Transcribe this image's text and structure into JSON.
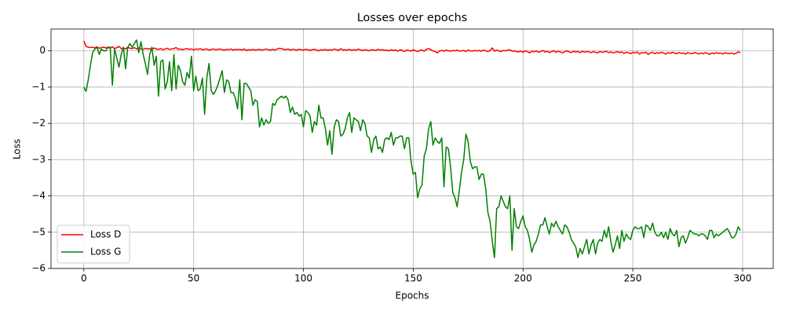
{
  "chart_data": {
    "type": "line",
    "title": "Losses over epochs",
    "x_label": "Epochs",
    "y_label": "Loss",
    "xlim": [
      -14.95,
      313.95
    ],
    "ylim": [
      -6.0,
      0.6
    ],
    "xticks": [
      0,
      50,
      100,
      150,
      200,
      250,
      300
    ],
    "yticks": [
      {
        "value": -6,
        "label": "−6"
      },
      {
        "value": -5,
        "label": "−5"
      },
      {
        "value": -4,
        "label": "−4"
      },
      {
        "value": -3,
        "label": "−3"
      },
      {
        "value": -2,
        "label": "−2"
      },
      {
        "value": -1,
        "label": "−1"
      },
      0
    ],
    "grid": true,
    "legend": "lower left",
    "x": [
      0,
      1,
      2,
      3,
      4,
      5,
      6,
      7,
      8,
      9,
      10,
      11,
      12,
      13,
      14,
      15,
      16,
      17,
      18,
      19,
      20,
      21,
      22,
      23,
      24,
      25,
      26,
      27,
      28,
      29,
      30,
      31,
      32,
      33,
      34,
      35,
      36,
      37,
      38,
      39,
      40,
      41,
      42,
      43,
      44,
      45,
      46,
      47,
      48,
      49,
      50,
      51,
      52,
      53,
      54,
      55,
      56,
      57,
      58,
      59,
      60,
      61,
      62,
      63,
      64,
      65,
      66,
      67,
      68,
      69,
      70,
      71,
      72,
      73,
      74,
      75,
      76,
      77,
      78,
      79,
      80,
      81,
      82,
      83,
      84,
      85,
      86,
      87,
      88,
      89,
      90,
      91,
      92,
      93,
      94,
      95,
      96,
      97,
      98,
      99,
      100,
      101,
      102,
      103,
      104,
      105,
      106,
      107,
      108,
      109,
      110,
      111,
      112,
      113,
      114,
      115,
      116,
      117,
      118,
      119,
      120,
      121,
      122,
      123,
      124,
      125,
      126,
      127,
      128,
      129,
      130,
      131,
      132,
      133,
      134,
      135,
      136,
      137,
      138,
      139,
      140,
      141,
      142,
      143,
      144,
      145,
      146,
      147,
      148,
      149,
      150,
      151,
      152,
      153,
      154,
      155,
      156,
      157,
      158,
      159,
      160,
      161,
      162,
      163,
      164,
      165,
      166,
      167,
      168,
      169,
      170,
      171,
      172,
      173,
      174,
      175,
      176,
      177,
      178,
      179,
      180,
      181,
      182,
      183,
      184,
      185,
      186,
      187,
      188,
      189,
      190,
      191,
      192,
      193,
      194,
      195,
      196,
      197,
      198,
      199,
      200,
      201,
      202,
      203,
      204,
      205,
      206,
      207,
      208,
      209,
      210,
      211,
      212,
      213,
      214,
      215,
      216,
      217,
      218,
      219,
      220,
      221,
      222,
      223,
      224,
      225,
      226,
      227,
      228,
      229,
      230,
      231,
      232,
      233,
      234,
      235,
      236,
      237,
      238,
      239,
      240,
      241,
      242,
      243,
      244,
      245,
      246,
      247,
      248,
      249,
      250,
      251,
      252,
      253,
      254,
      255,
      256,
      257,
      258,
      259,
      260,
      261,
      262,
      263,
      264,
      265,
      266,
      267,
      268,
      269,
      270,
      271,
      272,
      273,
      274,
      275,
      276,
      277,
      278,
      279,
      280,
      281,
      282,
      283,
      284,
      285,
      286,
      287,
      288,
      289,
      290,
      291,
      292,
      293,
      294,
      295,
      296,
      297,
      298,
      299
    ],
    "series": [
      {
        "name": "Loss D",
        "color": "#ff0000",
        "values": [
          0.27,
          0.12,
          0.1,
          0.09,
          0.1,
          0.08,
          0.11,
          0.07,
          0.09,
          0.1,
          0.08,
          0.1,
          0.07,
          0.11,
          0.06,
          0.09,
          0.12,
          0.06,
          0.08,
          0.05,
          0.1,
          0.07,
          0.06,
          0.09,
          0.05,
          0.08,
          0.06,
          0.04,
          0.07,
          0.05,
          0.06,
          0.03,
          0.08,
          0.05,
          0.04,
          0.06,
          0.03,
          0.05,
          0.07,
          0.04,
          0.05,
          0.06,
          0.09,
          0.04,
          0.05,
          0.03,
          0.05,
          0.06,
          0.04,
          0.05,
          0.03,
          0.05,
          0.04,
          0.06,
          0.03,
          0.04,
          0.05,
          0.02,
          0.04,
          0.05,
          0.03,
          0.04,
          0.05,
          0.03,
          0.02,
          0.04,
          0.03,
          0.05,
          0.02,
          0.04,
          0.03,
          0.04,
          0.02,
          0.05,
          0.01,
          0.03,
          0.02,
          0.04,
          0.02,
          0.03,
          0.04,
          0.02,
          0.03,
          0.05,
          0.03,
          0.02,
          0.04,
          0.02,
          0.05,
          0.07,
          0.06,
          0.04,
          0.03,
          0.05,
          0.02,
          0.04,
          0.03,
          0.02,
          0.04,
          0.03,
          0.02,
          0.04,
          0.03,
          0.01,
          0.03,
          0.04,
          0.02,
          0.0,
          0.03,
          0.02,
          0.04,
          0.01,
          0.03,
          0.02,
          0.05,
          0.03,
          0.01,
          0.06,
          0.02,
          0.03,
          0.02,
          0.04,
          0.01,
          0.03,
          0.02,
          0.05,
          0.02,
          0.01,
          0.03,
          0.02,
          0.0,
          0.03,
          0.02,
          0.01,
          0.04,
          0.02,
          0.03,
          0.01,
          0.02,
          0.0,
          0.03,
          0.01,
          0.02,
          -0.01,
          0.03,
          0.01,
          -0.02,
          0.02,
          0.01,
          -0.01,
          0.03,
          0.0,
          -0.02,
          0.01,
          0.02,
          -0.01,
          0.04,
          0.06,
          0.03,
          0.0,
          -0.02,
          -0.06,
          0.0,
          0.01,
          -0.01,
          0.02,
          0.0,
          -0.01,
          0.01,
          0.0,
          0.02,
          -0.01,
          0.0,
          0.01,
          -0.02,
          0.02,
          0.0,
          -0.01,
          0.01,
          0.0,
          0.01,
          -0.01,
          0.02,
          0.0,
          -0.02,
          0.01,
          0.08,
          -0.01,
          0.02,
          0.0,
          -0.02,
          0.01,
          0.0,
          0.02,
          0.03,
          -0.01,
          0.0,
          -0.02,
          -0.03,
          -0.01,
          -0.04,
          0.0,
          -0.02,
          -0.06,
          -0.01,
          -0.03,
          0.0,
          -0.04,
          -0.02,
          0.01,
          -0.03,
          -0.01,
          -0.05,
          -0.02,
          0.0,
          -0.04,
          -0.01,
          -0.03,
          -0.06,
          -0.02,
          0.0,
          -0.03,
          -0.05,
          -0.01,
          -0.03,
          -0.02,
          -0.05,
          -0.01,
          -0.04,
          -0.02,
          -0.03,
          -0.05,
          -0.02,
          -0.04,
          -0.06,
          -0.02,
          -0.04,
          -0.03,
          -0.01,
          -0.05,
          -0.03,
          -0.06,
          -0.04,
          -0.02,
          -0.05,
          -0.03,
          -0.07,
          -0.04,
          -0.05,
          -0.08,
          -0.04,
          -0.06,
          -0.03,
          -0.09,
          -0.05,
          -0.06,
          -0.04,
          -0.1,
          -0.06,
          -0.04,
          -0.08,
          -0.05,
          -0.07,
          -0.04,
          -0.06,
          -0.09,
          -0.05,
          -0.07,
          -0.04,
          -0.06,
          -0.08,
          -0.05,
          -0.07,
          -0.06,
          -0.09,
          -0.05,
          -0.07,
          -0.08,
          -0.05,
          -0.06,
          -0.09,
          -0.06,
          -0.08,
          -0.05,
          -0.07,
          -0.1,
          -0.06,
          -0.08,
          -0.05,
          -0.07,
          -0.06,
          -0.09,
          -0.05,
          -0.07,
          -0.08,
          -0.06,
          -0.09,
          -0.07,
          -0.03,
          -0.05
        ]
      },
      {
        "name": "Loss G",
        "color": "#008000",
        "values": [
          -1.0,
          -1.12,
          -0.8,
          -0.4,
          -0.05,
          0.05,
          0.1,
          -0.1,
          0.05,
          0.0,
          0.0,
          0.1,
          0.1,
          -0.95,
          0.05,
          -0.2,
          -0.45,
          -0.1,
          0.1,
          -0.5,
          0.1,
          0.2,
          0.1,
          0.2,
          0.3,
          -0.05,
          0.25,
          -0.1,
          -0.35,
          -0.65,
          -0.1,
          0.1,
          -0.4,
          -0.15,
          -1.25,
          -0.3,
          -0.25,
          -1.05,
          -0.85,
          -0.3,
          -1.1,
          -0.1,
          -1.05,
          -0.4,
          -0.55,
          -0.85,
          -0.95,
          -0.6,
          -0.75,
          -0.15,
          -1.1,
          -0.7,
          -1.1,
          -1.05,
          -0.75,
          -1.75,
          -0.75,
          -0.35,
          -1.1,
          -1.2,
          -1.1,
          -0.95,
          -0.75,
          -0.55,
          -1.15,
          -0.8,
          -0.85,
          -1.15,
          -1.15,
          -1.3,
          -1.6,
          -0.8,
          -1.9,
          -0.9,
          -0.9,
          -1.0,
          -1.1,
          -1.5,
          -1.35,
          -1.4,
          -2.1,
          -1.85,
          -2.05,
          -1.9,
          -2.0,
          -1.95,
          -1.45,
          -1.5,
          -1.35,
          -1.3,
          -1.25,
          -1.3,
          -1.25,
          -1.35,
          -1.7,
          -1.55,
          -1.75,
          -1.7,
          -1.8,
          -1.75,
          -2.1,
          -1.65,
          -1.7,
          -1.8,
          -2.25,
          -1.95,
          -2.05,
          -1.5,
          -1.85,
          -1.85,
          -2.15,
          -2.6,
          -2.2,
          -2.85,
          -2.1,
          -1.9,
          -1.95,
          -2.35,
          -2.3,
          -2.15,
          -1.85,
          -1.7,
          -2.25,
          -1.85,
          -1.9,
          -1.95,
          -2.2,
          -1.9,
          -2.0,
          -2.35,
          -2.4,
          -2.8,
          -2.45,
          -2.35,
          -2.7,
          -2.65,
          -2.8,
          -2.45,
          -2.4,
          -2.45,
          -2.25,
          -2.6,
          -2.4,
          -2.4,
          -2.35,
          -2.35,
          -2.7,
          -2.4,
          -2.4,
          -3.05,
          -3.4,
          -3.35,
          -4.05,
          -3.8,
          -3.7,
          -2.9,
          -2.7,
          -2.15,
          -1.95,
          -2.6,
          -2.4,
          -2.5,
          -2.55,
          -2.4,
          -3.75,
          -2.65,
          -2.7,
          -3.2,
          -3.9,
          -4.05,
          -4.3,
          -3.85,
          -3.35,
          -3.0,
          -2.3,
          -2.5,
          -3.05,
          -3.25,
          -3.2,
          -3.2,
          -3.55,
          -3.4,
          -3.4,
          -3.8,
          -4.45,
          -4.7,
          -5.25,
          -5.7,
          -4.35,
          -4.3,
          -4.0,
          -4.15,
          -4.3,
          -4.35,
          -4.0,
          -5.5,
          -4.35,
          -4.85,
          -4.9,
          -4.7,
          -4.55,
          -4.85,
          -4.95,
          -5.2,
          -5.55,
          -5.35,
          -5.25,
          -5.05,
          -4.8,
          -4.8,
          -4.6,
          -4.85,
          -5.05,
          -4.75,
          -4.85,
          -4.7,
          -4.85,
          -4.95,
          -5.05,
          -4.8,
          -4.85,
          -5.0,
          -5.2,
          -5.3,
          -5.4,
          -5.7,
          -5.45,
          -5.6,
          -5.4,
          -5.2,
          -5.6,
          -5.35,
          -5.2,
          -5.6,
          -5.3,
          -5.2,
          -5.25,
          -4.95,
          -5.15,
          -4.85,
          -5.25,
          -5.55,
          -5.35,
          -5.1,
          -5.45,
          -4.95,
          -5.25,
          -5.05,
          -5.15,
          -5.2,
          -4.95,
          -4.85,
          -4.9,
          -4.9,
          -4.85,
          -5.15,
          -4.8,
          -4.85,
          -4.95,
          -4.75,
          -5.0,
          -5.1,
          -5.1,
          -5.0,
          -5.15,
          -5.0,
          -5.2,
          -4.9,
          -5.05,
          -5.1,
          -4.95,
          -5.4,
          -5.15,
          -5.1,
          -5.3,
          -5.15,
          -4.95,
          -5.0,
          -5.05,
          -5.05,
          -5.1,
          -5.05,
          -5.05,
          -5.1,
          -5.2,
          -4.95,
          -4.95,
          -5.15,
          -5.05,
          -5.1,
          -5.05,
          -5.0,
          -4.95,
          -4.9,
          -5.0,
          -5.15,
          -5.15,
          -5.05,
          -4.85,
          -4.95
        ]
      }
    ]
  }
}
